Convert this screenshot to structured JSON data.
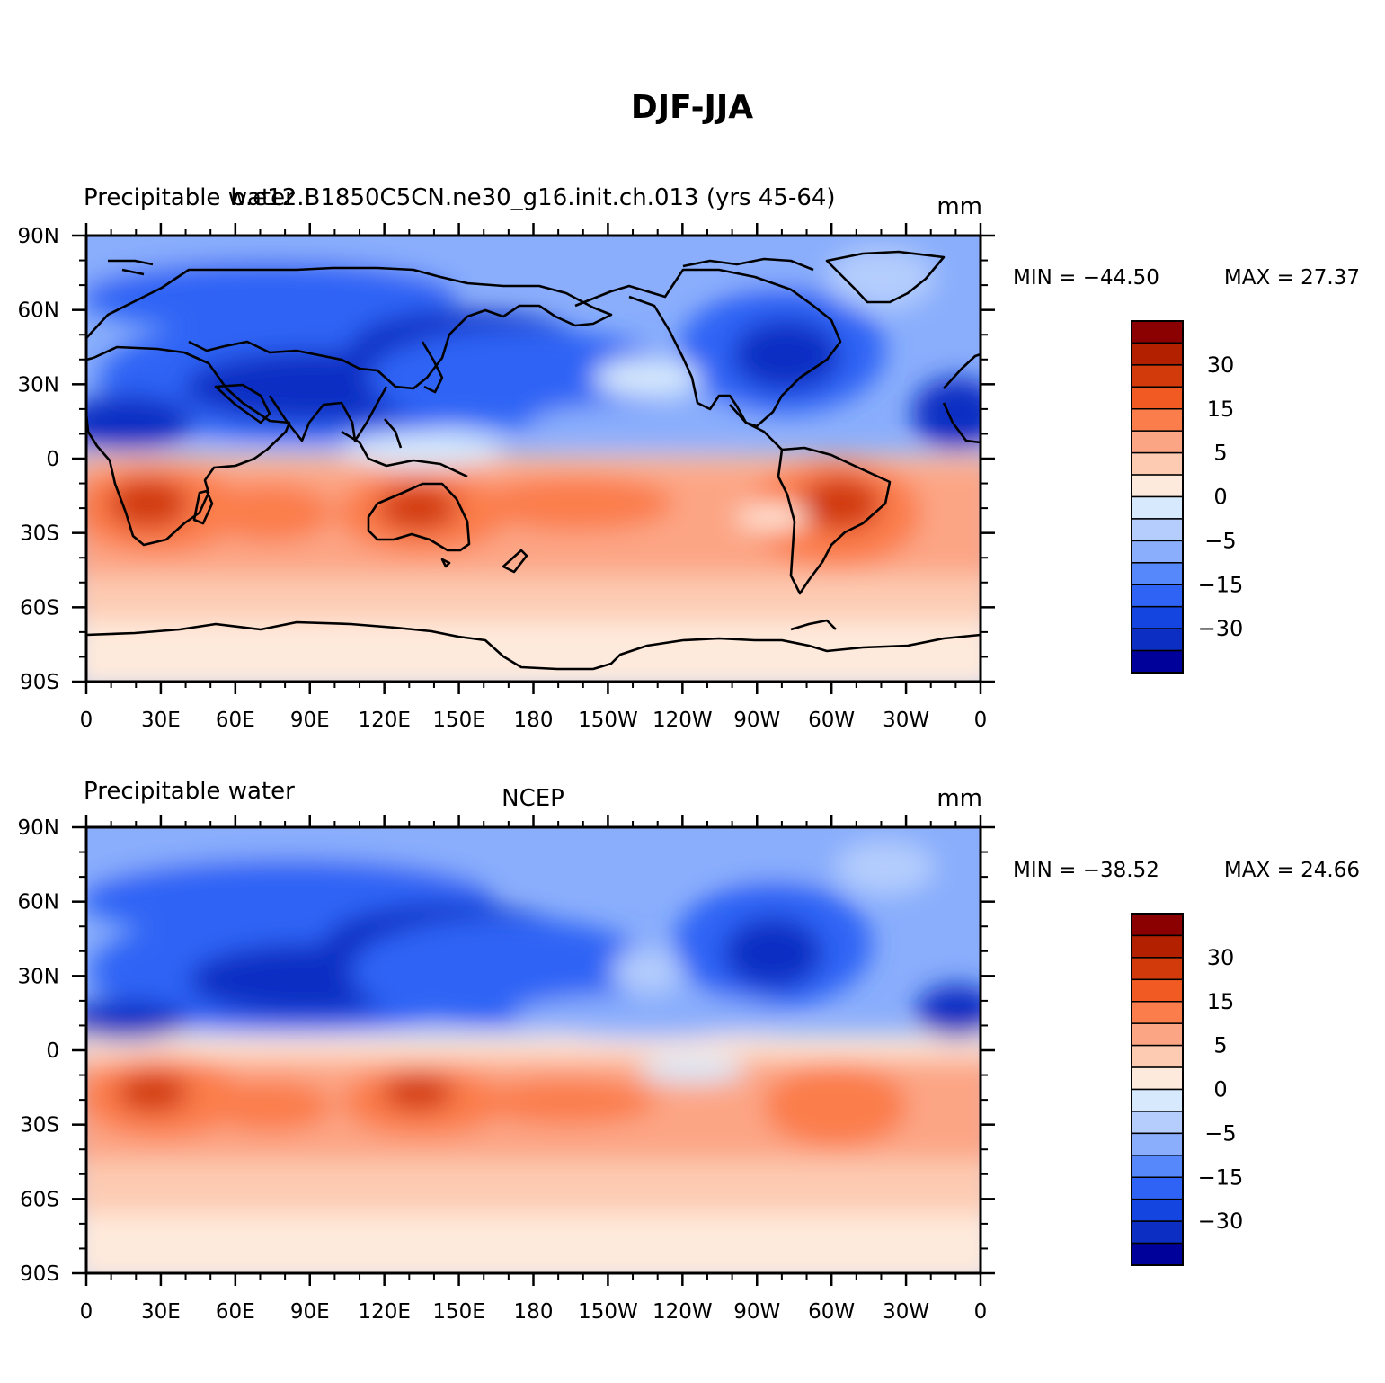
{
  "figure_title": "DJF-JJA",
  "panels": [
    {
      "left_title": "Precipitable water",
      "center_title": "b.e12.B1850C5CN.ne30_g16.init.ch.013 (yrs 45-64)",
      "units": "mm",
      "min_label": "MIN = −44.50",
      "max_label": "MAX =  27.37",
      "min_value": -44.5,
      "max_value": 27.37
    },
    {
      "left_title": "Precipitable water",
      "center_title": "NCEP",
      "units": "mm",
      "min_label": "MIN = −38.52",
      "max_label": "MAX =  24.66",
      "min_value": -38.52,
      "max_value": 24.66
    }
  ],
  "axes": {
    "x_ticks": [
      "0",
      "30E",
      "60E",
      "90E",
      "120E",
      "150E",
      "180",
      "150W",
      "120W",
      "90W",
      "60W",
      "30W",
      "0"
    ],
    "y_ticks": [
      "90N",
      "60N",
      "30N",
      "0",
      "30S",
      "60S",
      "90S"
    ]
  },
  "colorbar": {
    "labels": [
      "30",
      "15",
      "5",
      "0",
      "−5",
      "−15",
      "−30"
    ],
    "colors_top_to_bottom": [
      "#8b0000",
      "#b22000",
      "#d23a0c",
      "#f25a23",
      "#fb7d4c",
      "#fca585",
      "#fdcbb2",
      "#feeadc",
      "#d6e9fd",
      "#b4cdfd",
      "#8aaefc",
      "#5788fb",
      "#2e63f5",
      "#1545e0",
      "#0c2ec3",
      "#00009a"
    ]
  },
  "colors": {
    "strong_neg": "#0c2ec3",
    "mid_neg": "#2e63f5",
    "light_neg": "#8aaefc",
    "pale_neg": "#d6e9fd",
    "pale_pos": "#feeadc",
    "light_pos": "#fdcbb2",
    "mid_pos": "#fb7d4c",
    "strong_pos": "#d23a0c"
  }
}
